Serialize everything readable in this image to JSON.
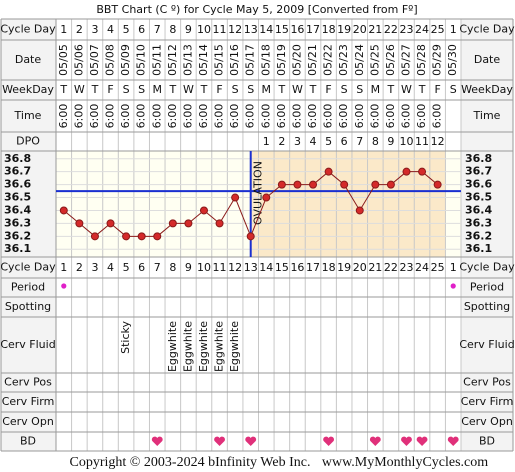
{
  "title": "BBT Chart (C º) for Cycle May 5, 2009  [Converted from Fº]",
  "labels": {
    "cycle_day": "Cycle Day",
    "date": "Date",
    "weekday": "WeekDay",
    "time": "Time",
    "dpo": "DPO",
    "period": "Period",
    "spotting": "Spotting",
    "cerv_fluid": "Cerv Fluid",
    "cerv_pos": "Cerv Pos",
    "cerv_firm": "Cerv Firm",
    "cerv_opn": "Cerv Opn",
    "bd": "BD"
  },
  "cycle_days": [
    1,
    2,
    3,
    4,
    5,
    6,
    7,
    8,
    9,
    10,
    11,
    12,
    13,
    14,
    15,
    16,
    17,
    18,
    19,
    20,
    21,
    22,
    23,
    24,
    25,
    1
  ],
  "dates": [
    "05/05",
    "05/06",
    "05/07",
    "05/08",
    "05/09",
    "05/10",
    "05/11",
    "05/12",
    "05/13",
    "05/14",
    "05/15",
    "05/16",
    "05/17",
    "05/18",
    "05/19",
    "05/20",
    "05/21",
    "05/22",
    "05/23",
    "05/24",
    "05/25",
    "05/26",
    "05/27",
    "05/28",
    "05/29",
    "05/30"
  ],
  "weekdays": [
    "T",
    "W",
    "T",
    "F",
    "S",
    "S",
    "M",
    "T",
    "W",
    "T",
    "F",
    "S",
    "S",
    "M",
    "T",
    "W",
    "T",
    "F",
    "S",
    "S",
    "M",
    "T",
    "W",
    "T",
    "F",
    "S"
  ],
  "times": [
    "6:00",
    "6:00",
    "6:00",
    "6:00",
    "6:00",
    "6:00",
    "6:00",
    "6:00",
    "6:00",
    "6:00",
    "6:00",
    "6:00",
    "6:00",
    "6:00",
    "6:00",
    "6:00",
    "6:00",
    "6:00",
    "6:00",
    "6:00",
    "6:00",
    "6:00",
    "6:00",
    "6:00",
    "6:00",
    null
  ],
  "dpo": [
    null,
    null,
    null,
    null,
    null,
    null,
    null,
    null,
    null,
    null,
    null,
    null,
    null,
    1,
    2,
    3,
    4,
    5,
    6,
    7,
    8,
    9,
    10,
    11,
    12,
    null
  ],
  "chart_data": {
    "type": "line",
    "values": [
      36.4,
      36.3,
      36.2,
      36.3,
      36.2,
      36.2,
      36.2,
      36.3,
      36.3,
      36.4,
      36.3,
      36.5,
      36.2,
      36.5,
      36.6,
      36.6,
      36.6,
      36.7,
      36.6,
      36.4,
      36.6,
      36.6,
      36.7,
      36.7,
      36.6,
      null
    ],
    "color": "#d42a2a",
    "ylim": [
      36.04,
      36.86
    ],
    "yticks": [
      36.1,
      36.2,
      36.3,
      36.4,
      36.5,
      36.6,
      36.7,
      36.8
    ],
    "coverline": 36.55,
    "coverline_color": "#1a2fd0",
    "ovulation_cycle_day": 13,
    "ovulation_label": "OVULATION",
    "grid": true
  },
  "period": [
    true,
    false,
    false,
    false,
    false,
    false,
    false,
    false,
    false,
    false,
    false,
    false,
    false,
    false,
    false,
    false,
    false,
    false,
    false,
    false,
    false,
    false,
    false,
    false,
    false,
    true
  ],
  "cerv_fluid": [
    null,
    null,
    null,
    null,
    "Sticky",
    null,
    null,
    "Eggwhite",
    "Eggwhite",
    "Eggwhite",
    "Eggwhite",
    "Eggwhite",
    null,
    null,
    null,
    null,
    null,
    null,
    null,
    null,
    null,
    null,
    null,
    null,
    null,
    null
  ],
  "bd": [
    false,
    false,
    false,
    false,
    false,
    false,
    true,
    false,
    false,
    false,
    true,
    false,
    true,
    false,
    false,
    false,
    false,
    true,
    false,
    false,
    true,
    false,
    true,
    true,
    false,
    true
  ],
  "footer": {
    "copyright": "Copyright © 2003-2024 bInfinity Web Inc.",
    "website": "www.MyMonthlyCycles.com"
  }
}
